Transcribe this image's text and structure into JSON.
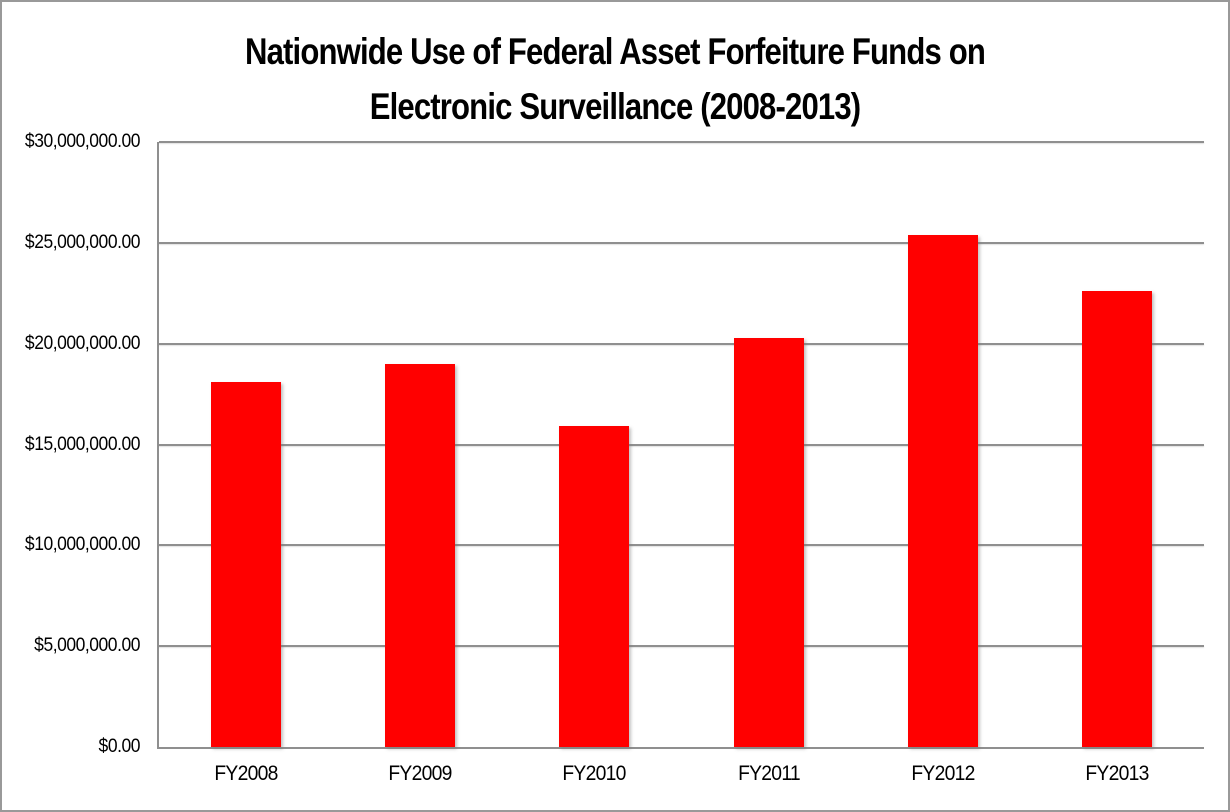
{
  "page": {
    "background_color": "#ffffff",
    "outer_border_color": "#999999"
  },
  "chart_data": {
    "type": "bar",
    "title": "Nationwide Use of Federal Asset Forfeiture Funds on Electronic Surveillance (2008-2013)",
    "title_lines": [
      "Nationwide Use of Federal Asset Forfeiture Funds on",
      "Electronic Surveillance (2008-2013)"
    ],
    "categories": [
      "FY2008",
      "FY2009",
      "FY2010",
      "FY2011",
      "FY2012",
      "FY2013"
    ],
    "values": [
      18100000,
      19000000,
      15900000,
      20300000,
      25400000,
      22600000
    ],
    "xlabel": "",
    "ylabel": "",
    "ylim": [
      0,
      30000000
    ],
    "y_tick_step": 5000000,
    "y_tick_labels": [
      "$0.00",
      "$5,000,000.00",
      "$10,000,000.00",
      "$15,000,000.00",
      "$20,000,000.00",
      "$25,000,000.00",
      "$30,000,000.00"
    ],
    "bar_color": "#ff0000",
    "gridline_color": "#8f8f8f",
    "axis_color": "#8f8f8f",
    "text_color": "#000000",
    "grid": true,
    "legend": false
  }
}
